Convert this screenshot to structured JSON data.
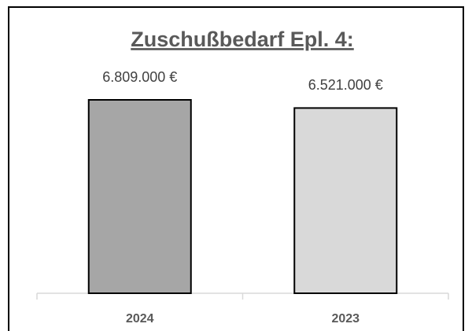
{
  "chart_data": {
    "type": "bar",
    "title": "Zuschußbedarf Epl. 4:",
    "categories": [
      "2024",
      "2023"
    ],
    "values": [
      6809000,
      6521000
    ],
    "value_labels": [
      "6.809.000 €",
      "6.521.000 €"
    ],
    "colors": [
      "#a6a6a6",
      "#d9d9d9"
    ]
  }
}
